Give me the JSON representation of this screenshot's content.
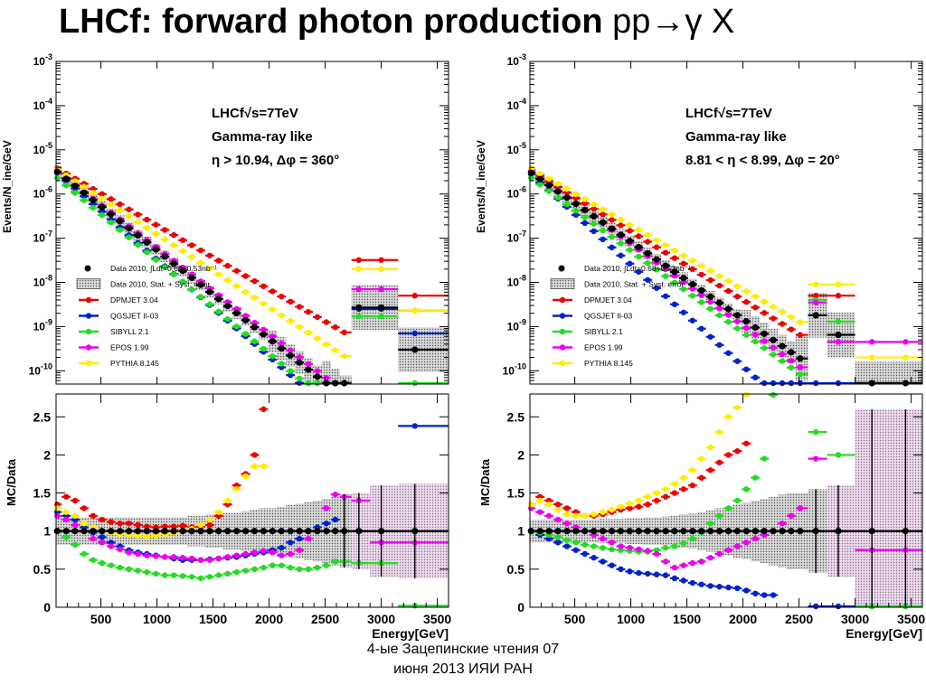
{
  "slide": {
    "title_bold": "LHCf: forward photon production",
    "title_plain": "pp→γ X",
    "footer_line1": "4-ые Зацепинские чтения 07",
    "footer_line2": "июня 2013 ИЯИ РАН"
  },
  "chart_data": [
    {
      "type": "scatter",
      "panel": "spectrum",
      "ylabel": "Events/N_ine/GeV",
      "yscale": "log",
      "ylim": [
        5e-11,
        0.001
      ],
      "xlim": [
        100,
        3600
      ],
      "ytick_labels": [
        "10^-3",
        "10^-4",
        "10^-5",
        "10^-6",
        "10^-7",
        "10^-8",
        "10^-9",
        "10^-10"
      ],
      "annotations": [
        "LHCf√s=7TeV",
        "Gamma-ray like",
        "η > 10.94, Δφ = 360°"
      ],
      "legend_position": "bottom-left",
      "legend": [
        "Data 2010, ∫Ldt=0.68+0.53nb⁻¹",
        "Data 2010, Stat. + Syst. error",
        "DPMJET 3.04",
        "QGSJET II-03",
        "SIBYLL 2.1",
        "EPOS 1.99",
        "PYTHIA 8.145"
      ],
      "x": [
        110,
        190,
        270,
        350,
        430,
        510,
        590,
        670,
        750,
        830,
        910,
        990,
        1070,
        1150,
        1230,
        1310,
        1390,
        1470,
        1550,
        1630,
        1710,
        1790,
        1870,
        1950,
        2030,
        2110,
        2190,
        2270,
        2350,
        2430,
        2510,
        2590,
        2670,
        2800,
        3000,
        3300
      ],
      "series": [
        {
          "name": "Data 2010",
          "color": "#000000",
          "y0": 3.2e-06,
          "slope": -2.0,
          "tail": {
            "2800": 2.7e-09,
            "3000": 2.7e-09,
            "3300": 3e-10
          }
        },
        {
          "name": "DPMJET 3.04",
          "color": "#ee0000",
          "y0": 3.8e-06,
          "slope": -1.45,
          "tail": {
            "2800": 3.2e-08,
            "3000": 3.2e-08,
            "3300": 5e-09
          }
        },
        {
          "name": "QGSJET II-03",
          "color": "#0022cc",
          "y0": 3e-06,
          "slope": -2.2,
          "tail": {
            "2800": 2.5e-09,
            "3000": 2.5e-09,
            "3300": 7e-10
          }
        },
        {
          "name": "SIBYLL 2.1",
          "color": "#22dd22",
          "y0": 2.3e-06,
          "slope": -2.1,
          "tail": {
            "2800": 1.7e-09,
            "3000": 1.7e-09,
            "3300": 3e-11
          }
        },
        {
          "name": "EPOS 1.99",
          "color": "#ee00ee",
          "y0": 3.3e-06,
          "slope": -1.95,
          "tail": {
            "2800": 7e-09,
            "3000": 7e-09,
            "3300": 2.3e-09
          }
        },
        {
          "name": "PYTHIA 8.145",
          "color": "#ffee00",
          "y0": 3.6e-06,
          "slope": -1.65,
          "tail": {
            "2800": 2e-08,
            "3000": 2e-08,
            "3300": 2.3e-09
          }
        }
      ]
    },
    {
      "type": "scatter",
      "panel": "ratio",
      "xlabel": "Energy[GeV]",
      "ylabel": "MC/Data",
      "xlim": [
        100,
        3600
      ],
      "ylim": [
        0,
        2.8
      ],
      "xticks": [
        500,
        1000,
        1500,
        2000,
        2500,
        3000,
        3500
      ],
      "yticks": [
        0,
        0.5,
        1,
        1.5,
        2,
        2.5
      ],
      "x": [
        110,
        190,
        270,
        350,
        430,
        510,
        590,
        670,
        750,
        830,
        910,
        990,
        1070,
        1150,
        1230,
        1310,
        1390,
        1470,
        1550,
        1630,
        1710,
        1790,
        1870,
        1950,
        2030,
        2110,
        2190,
        2270,
        2350,
        2430,
        2510,
        2590,
        2670,
        2800,
        3000,
        3300
      ],
      "band_upper": [
        1.18,
        1.18,
        1.18,
        1.18,
        1.18,
        1.18,
        1.18,
        1.18,
        1.18,
        1.18,
        1.18,
        1.18,
        1.18,
        1.18,
        1.18,
        1.2,
        1.2,
        1.22,
        1.22,
        1.24,
        1.24,
        1.26,
        1.28,
        1.3,
        1.3,
        1.32,
        1.34,
        1.36,
        1.38,
        1.4,
        1.42,
        1.45,
        1.48,
        1.5,
        1.6,
        1.62
      ],
      "band_lower": [
        0.82,
        0.82,
        0.82,
        0.82,
        0.82,
        0.82,
        0.82,
        0.82,
        0.82,
        0.82,
        0.82,
        0.82,
        0.82,
        0.82,
        0.82,
        0.8,
        0.8,
        0.78,
        0.78,
        0.76,
        0.76,
        0.74,
        0.72,
        0.7,
        0.7,
        0.68,
        0.66,
        0.64,
        0.62,
        0.6,
        0.58,
        0.55,
        0.52,
        0.5,
        0.4,
        0.38
      ],
      "series": [
        {
          "name": "Data 2010",
          "color": "#000000",
          "y": [
            1,
            1,
            1,
            1,
            1,
            1,
            1,
            1,
            1,
            1,
            1,
            1,
            1,
            1,
            1,
            1,
            1,
            1,
            1,
            1,
            1,
            1,
            1,
            1,
            1,
            1,
            1,
            1,
            1,
            1,
            1,
            1,
            1,
            1,
            1,
            1
          ]
        },
        {
          "name": "DPMJET 3.04",
          "color": "#ee0000",
          "y": [
            1.35,
            1.45,
            1.4,
            1.3,
            1.2,
            1.15,
            1.12,
            1.1,
            1.1,
            1.08,
            1.06,
            1.05,
            1.06,
            1.06,
            1.07,
            1.05,
            1.06,
            1.08,
            1.2,
            1.35,
            1.6,
            1.75,
            2.0,
            2.6,
            null,
            null,
            null,
            null,
            null,
            null,
            null,
            null,
            null,
            null,
            null,
            null
          ]
        },
        {
          "name": "QGSJET II-03",
          "color": "#0022cc",
          "y": [
            1.25,
            1.2,
            1.15,
            1.05,
            0.98,
            0.92,
            0.85,
            0.8,
            0.75,
            0.72,
            0.7,
            0.68,
            0.66,
            0.64,
            0.62,
            0.62,
            0.62,
            0.63,
            0.64,
            0.65,
            0.66,
            0.68,
            0.7,
            0.72,
            0.75,
            0.78,
            0.85,
            0.9,
            1.0,
            1.05,
            1.1,
            1.15,
            null,
            null,
            null,
            2.38
          ]
        },
        {
          "name": "SIBYLL 2.1",
          "color": "#22dd22",
          "y": [
            1.0,
            0.92,
            0.82,
            0.7,
            0.62,
            0.58,
            0.55,
            0.52,
            0.5,
            0.48,
            0.46,
            0.44,
            0.42,
            0.42,
            0.41,
            0.4,
            0.38,
            0.4,
            0.42,
            0.44,
            0.46,
            0.48,
            0.5,
            0.52,
            0.55,
            0.55,
            0.52,
            0.5,
            0.5,
            0.52,
            0.55,
            0.6,
            0.6,
            0.58,
            0.58,
            0.02
          ]
        },
        {
          "name": "EPOS 1.99",
          "color": "#ee00ee",
          "y": [
            1.2,
            1.15,
            1.08,
            1.0,
            0.9,
            0.85,
            0.8,
            0.76,
            0.72,
            0.7,
            0.68,
            0.67,
            0.66,
            0.66,
            0.65,
            0.64,
            0.62,
            0.62,
            0.64,
            0.66,
            0.68,
            0.7,
            0.72,
            0.74,
            0.72,
            0.68,
            0.7,
            0.75,
            0.9,
            1.0,
            1.3,
            1.48,
            1.45,
            1.4,
            0.85,
            0.85
          ]
        },
        {
          "name": "PYTHIA 8.145",
          "color": "#ffee00",
          "y": [
            1.3,
            1.25,
            1.2,
            1.1,
            1.05,
            1.0,
            0.98,
            0.96,
            0.95,
            0.94,
            0.93,
            0.94,
            0.96,
            0.98,
            1.0,
            1.03,
            1.08,
            1.15,
            1.25,
            1.4,
            1.55,
            1.72,
            1.85,
            1.85,
            null,
            null,
            null,
            null,
            null,
            null,
            null,
            null,
            null,
            null,
            null,
            null
          ]
        }
      ]
    },
    {
      "type": "scatter",
      "panel": "spectrum",
      "ylabel": "Events/N_ine/GeV",
      "yscale": "log",
      "ylim": [
        5e-11,
        0.001
      ],
      "xlim": [
        100,
        3600
      ],
      "ytick_labels": [
        "10^-3",
        "10^-4",
        "10^-5",
        "10^-6",
        "10^-7",
        "10^-8",
        "10^-9",
        "10^-10"
      ],
      "annotations": [
        "LHCf√s=7TeV",
        "Gamma-ray like",
        "8.81 < η < 8.99, Δφ = 20°"
      ],
      "legend_position": "bottom-left",
      "legend": [
        "Data 2010, ∫Ldt=0.68+0.53nb⁻¹",
        "Data 2010, Stat. + Syst. error",
        "DPMJET 3.04",
        "QGSJET II-03",
        "SIBYLL 2.1",
        "EPOS 1.99",
        "PYTHIA 8.145"
      ],
      "x": [
        110,
        190,
        270,
        350,
        430,
        510,
        590,
        670,
        750,
        830,
        910,
        990,
        1070,
        1150,
        1230,
        1310,
        1390,
        1470,
        1550,
        1630,
        1710,
        1790,
        1870,
        1950,
        2030,
        2110,
        2190,
        2270,
        2350,
        2430,
        2510,
        2650,
        2850,
        3150,
        3450
      ],
      "series": [
        {
          "name": "Data 2010",
          "color": "#000000",
          "y0": 3e-06,
          "slope": -1.75,
          "tail": {
            "2650": 1.8e-09,
            "2850": 6.5e-10,
            "3150": 5e-11,
            "3450": 5e-11
          }
        },
        {
          "name": "DPMJET 3.04",
          "color": "#ee0000",
          "y0": 3.4e-06,
          "slope": -1.55,
          "tail": {
            "2650": 5e-09,
            "2850": 5e-09,
            "3150": null,
            "3450": null
          }
        },
        {
          "name": "QGSJET II-03",
          "color": "#0022cc",
          "y0": 2.8e-06,
          "slope": -2.3,
          "tail": {
            "2650": 5e-11,
            "2850": 5e-11,
            "3150": 5e-11,
            "3450": 5e-11
          }
        },
        {
          "name": "SIBYLL 2.1",
          "color": "#22dd22",
          "y0": 2.3e-06,
          "slope": -1.85,
          "tail": {
            "2650": 4e-09,
            "2850": 1.3e-09,
            "3150": 5e-11,
            "3450": 5e-11
          }
        },
        {
          "name": "EPOS 1.99",
          "color": "#ee00ee",
          "y0": 3.3e-06,
          "slope": -1.85,
          "tail": {
            "2650": 3.5e-09,
            "2850": 4.5e-10,
            "3150": 4.5e-10,
            "3450": 4.5e-10
          }
        },
        {
          "name": "PYTHIA 8.145",
          "color": "#ffee00",
          "y0": 3.8e-06,
          "slope": -1.45,
          "tail": {
            "2650": 9e-09,
            "2850": 9e-09,
            "3150": 2e-10,
            "3450": 2e-10
          }
        }
      ]
    },
    {
      "type": "scatter",
      "panel": "ratio",
      "xlabel": "Energy[GeV]",
      "ylabel": "MC/Data",
      "xlim": [
        100,
        3600
      ],
      "ylim": [
        0,
        2.8
      ],
      "xticks": [
        500,
        1000,
        1500,
        2000,
        2500,
        3000,
        3500
      ],
      "yticks": [
        0,
        0.5,
        1,
        1.5,
        2,
        2.5
      ],
      "x": [
        110,
        190,
        270,
        350,
        430,
        510,
        590,
        670,
        750,
        830,
        910,
        990,
        1070,
        1150,
        1230,
        1310,
        1390,
        1470,
        1550,
        1630,
        1710,
        1790,
        1870,
        1950,
        2030,
        2110,
        2190,
        2270,
        2350,
        2430,
        2510,
        2650,
        2850,
        3150,
        3450
      ],
      "band_upper": [
        1.15,
        1.15,
        1.15,
        1.15,
        1.15,
        1.15,
        1.15,
        1.15,
        1.16,
        1.16,
        1.16,
        1.17,
        1.17,
        1.18,
        1.18,
        1.19,
        1.2,
        1.22,
        1.23,
        1.25,
        1.27,
        1.3,
        1.32,
        1.35,
        1.37,
        1.4,
        1.42,
        1.45,
        1.48,
        1.5,
        1.5,
        1.55,
        1.6,
        2.6,
        2.6
      ],
      "band_lower": [
        0.85,
        0.85,
        0.85,
        0.85,
        0.85,
        0.85,
        0.85,
        0.85,
        0.84,
        0.84,
        0.84,
        0.83,
        0.83,
        0.82,
        0.82,
        0.81,
        0.8,
        0.78,
        0.77,
        0.75,
        0.73,
        0.7,
        0.68,
        0.65,
        0.63,
        0.6,
        0.58,
        0.55,
        0.52,
        0.5,
        0.5,
        0.45,
        0.4,
        0.0,
        0.0
      ],
      "series": [
        {
          "name": "Data 2010",
          "color": "#000000",
          "y": [
            1,
            1,
            1,
            1,
            1,
            1,
            1,
            1,
            1,
            1,
            1,
            1,
            1,
            1,
            1,
            1,
            1,
            1,
            1,
            1,
            1,
            1,
            1,
            1,
            1,
            1,
            1,
            1,
            1,
            1,
            1,
            1,
            1,
            1,
            1
          ]
        },
        {
          "name": "DPMJET 3.04",
          "color": "#ee0000",
          "y": [
            1.35,
            1.45,
            1.4,
            1.35,
            1.3,
            1.25,
            1.2,
            1.2,
            1.22,
            1.25,
            1.28,
            1.3,
            1.32,
            1.35,
            1.4,
            1.45,
            1.5,
            1.55,
            1.6,
            1.7,
            1.8,
            1.9,
            2.0,
            2.05,
            2.15,
            null,
            null,
            null,
            null,
            null,
            null,
            null,
            null,
            null,
            null
          ]
        },
        {
          "name": "QGSJET II-03",
          "color": "#0022cc",
          "y": [
            1.0,
            0.95,
            0.9,
            0.85,
            0.8,
            0.75,
            0.7,
            0.65,
            0.6,
            0.55,
            0.5,
            0.47,
            0.45,
            0.44,
            0.43,
            0.42,
            0.38,
            0.35,
            0.32,
            0.3,
            0.28,
            0.27,
            0.26,
            0.25,
            0.22,
            0.18,
            0.16,
            0.16,
            null,
            null,
            null,
            0.01,
            0.01,
            0.01,
            0.01
          ]
        },
        {
          "name": "SIBYLL 2.1",
          "color": "#22dd22",
          "y": [
            1.0,
            0.98,
            0.95,
            0.92,
            0.88,
            0.85,
            0.82,
            0.8,
            0.78,
            0.76,
            0.75,
            0.74,
            0.73,
            0.73,
            0.75,
            0.78,
            0.8,
            0.84,
            0.9,
            0.98,
            1.1,
            1.2,
            1.3,
            1.4,
            1.55,
            1.7,
            1.95,
            2.8,
            null,
            null,
            null,
            2.3,
            2.0,
            0.01,
            0.01
          ]
        },
        {
          "name": "EPOS 1.99",
          "color": "#ee00ee",
          "y": [
            1.3,
            1.25,
            1.2,
            1.15,
            1.1,
            1.05,
            1.0,
            0.95,
            0.9,
            0.85,
            0.8,
            0.78,
            0.76,
            0.74,
            0.7,
            0.6,
            0.52,
            0.55,
            0.58,
            0.6,
            0.65,
            0.7,
            0.75,
            0.8,
            0.85,
            0.9,
            0.95,
            1.0,
            1.1,
            1.2,
            1.3,
            1.95,
            null,
            0.75,
            0.75
          ]
        },
        {
          "name": "PYTHIA 8.145",
          "color": "#ffee00",
          "y": [
            1.35,
            1.4,
            1.35,
            1.28,
            1.22,
            1.2,
            1.2,
            1.22,
            1.25,
            1.28,
            1.32,
            1.36,
            1.4,
            1.45,
            1.5,
            1.55,
            1.62,
            1.7,
            1.8,
            1.95,
            2.1,
            2.3,
            2.5,
            2.62,
            2.8,
            null,
            null,
            null,
            null,
            null,
            null,
            null,
            null,
            null,
            null
          ]
        }
      ]
    }
  ]
}
